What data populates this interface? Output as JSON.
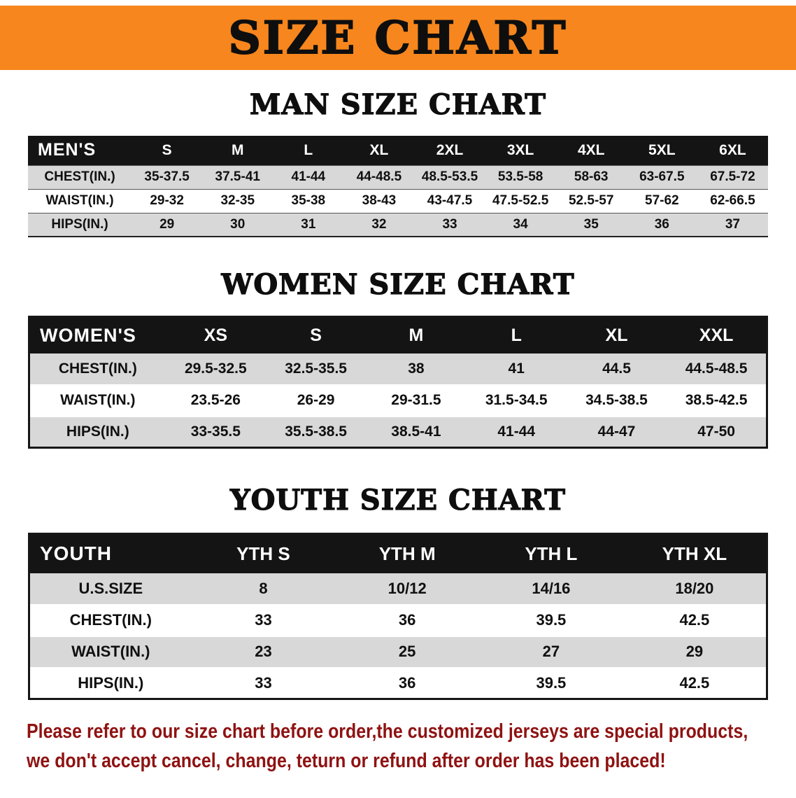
{
  "banner": {
    "title": "SIZE CHART"
  },
  "chart_data": [
    {
      "type": "table",
      "heading": "MAN SIZE CHART",
      "columns": [
        "MEN'S",
        "S",
        "M",
        "L",
        "XL",
        "2XL",
        "3XL",
        "4XL",
        "5XL",
        "6XL"
      ],
      "rows": [
        [
          "CHEST(IN.)",
          "35-37.5",
          "37.5-41",
          "41-44",
          "44-48.5",
          "48.5-53.5",
          "53.5-58",
          "58-63",
          "63-67.5",
          "67.5-72"
        ],
        [
          "WAIST(IN.)",
          "29-32",
          "32-35",
          "35-38",
          "38-43",
          "43-47.5",
          "47.5-52.5",
          "52.5-57",
          "57-62",
          "62-66.5"
        ],
        [
          "HIPS(IN.)",
          "29",
          "30",
          "31",
          "32",
          "33",
          "34",
          "35",
          "36",
          "37"
        ]
      ]
    },
    {
      "type": "table",
      "heading": "WOMEN SIZE CHART",
      "columns": [
        "WOMEN'S",
        "XS",
        "S",
        "M",
        "L",
        "XL",
        "XXL"
      ],
      "rows": [
        [
          "CHEST(IN.)",
          "29.5-32.5",
          "32.5-35.5",
          "38",
          "41",
          "44.5",
          "44.5-48.5"
        ],
        [
          "WAIST(IN.)",
          "23.5-26",
          "26-29",
          "29-31.5",
          "31.5-34.5",
          "34.5-38.5",
          "38.5-42.5"
        ],
        [
          "HIPS(IN.)",
          "33-35.5",
          "35.5-38.5",
          "38.5-41",
          "41-44",
          "44-47",
          "47-50"
        ]
      ]
    },
    {
      "type": "table",
      "heading": "YOUTH SIZE CHART",
      "columns": [
        "YOUTH",
        "YTH S",
        "YTH M",
        "YTH L",
        "YTH XL"
      ],
      "rows": [
        [
          "U.S.SIZE",
          "8",
          "10/12",
          "14/16",
          "18/20"
        ],
        [
          "CHEST(IN.)",
          "33",
          "36",
          "39.5",
          "42.5"
        ],
        [
          "WAIST(IN.)",
          "23",
          "25",
          "27",
          "29"
        ],
        [
          "HIPS(IN.)",
          "33",
          "36",
          "39.5",
          "42.5"
        ]
      ]
    }
  ],
  "footer": {
    "line1": "Please refer to our size chart before order,the customized jerseys are special products,",
    "line2": "we don't accept cancel, change, teturn or refund after order has been placed!"
  },
  "colors": {
    "banner_bg": "#f6861d",
    "table_header_bg": "#141414",
    "table_header_text": "#ffffff",
    "row_stripe": "#d8d8d8",
    "notice_text": "#8f1212"
  }
}
